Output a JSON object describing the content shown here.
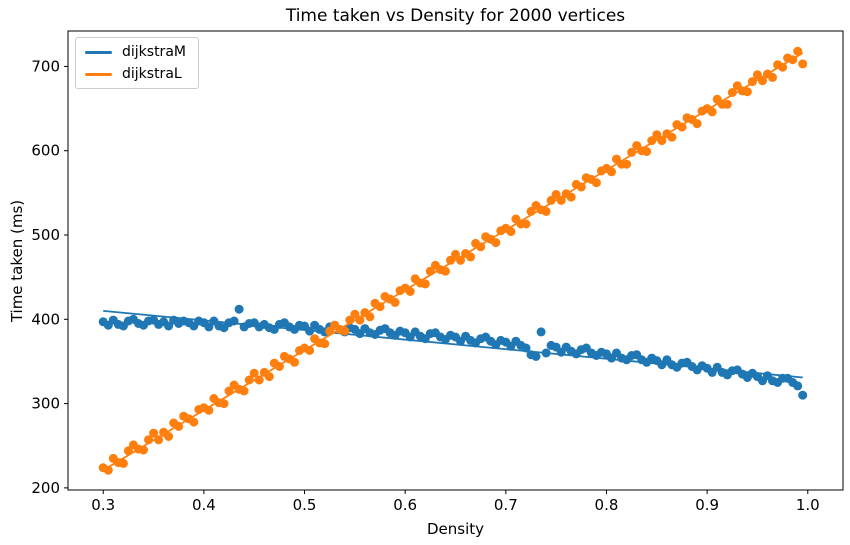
{
  "chart_data": {
    "type": "scatter",
    "title": "Time taken vs Density for 2000 vertices",
    "xlabel": "Density",
    "ylabel": "Time taken (ms)",
    "xlim": [
      0.265,
      1.035
    ],
    "ylim": [
      197.5,
      742
    ],
    "xticks": [
      0.3,
      0.4,
      0.5,
      0.6,
      0.7,
      0.8,
      0.9,
      1.0
    ],
    "yticks": [
      200,
      300,
      400,
      500,
      600,
      700
    ],
    "grid": false,
    "legend_position": "upper left",
    "x": [
      0.3,
      0.305,
      0.31,
      0.315,
      0.32,
      0.325,
      0.33,
      0.335,
      0.34,
      0.345,
      0.35,
      0.355,
      0.36,
      0.365,
      0.37,
      0.375,
      0.38,
      0.385,
      0.39,
      0.395,
      0.4,
      0.405,
      0.41,
      0.415,
      0.42,
      0.425,
      0.43,
      0.435,
      0.44,
      0.445,
      0.45,
      0.455,
      0.46,
      0.465,
      0.47,
      0.475,
      0.48,
      0.485,
      0.49,
      0.495,
      0.5,
      0.505,
      0.51,
      0.515,
      0.52,
      0.525,
      0.53,
      0.535,
      0.54,
      0.545,
      0.55,
      0.555,
      0.56,
      0.565,
      0.57,
      0.575,
      0.58,
      0.585,
      0.59,
      0.595,
      0.6,
      0.605,
      0.61,
      0.615,
      0.62,
      0.625,
      0.63,
      0.635,
      0.64,
      0.645,
      0.65,
      0.655,
      0.66,
      0.665,
      0.67,
      0.675,
      0.68,
      0.685,
      0.69,
      0.695,
      0.7,
      0.705,
      0.71,
      0.715,
      0.72,
      0.725,
      0.73,
      0.735,
      0.74,
      0.745,
      0.75,
      0.755,
      0.76,
      0.765,
      0.77,
      0.775,
      0.78,
      0.785,
      0.79,
      0.795,
      0.8,
      0.805,
      0.81,
      0.815,
      0.82,
      0.825,
      0.83,
      0.835,
      0.84,
      0.845,
      0.85,
      0.855,
      0.86,
      0.865,
      0.87,
      0.875,
      0.88,
      0.885,
      0.89,
      0.895,
      0.9,
      0.905,
      0.91,
      0.915,
      0.92,
      0.925,
      0.93,
      0.935,
      0.94,
      0.945,
      0.95,
      0.955,
      0.96,
      0.965,
      0.97,
      0.975,
      0.98,
      0.985,
      0.99,
      0.995
    ],
    "series": [
      {
        "name": "dijkstraM",
        "color": "#1f77b4",
        "marker": "circle",
        "trend_line": {
          "x": [
            0.3,
            0.995
          ],
          "y": [
            410,
            331
          ]
        },
        "y": [
          397,
          393,
          399,
          394,
          392,
          398,
          400,
          395,
          393,
          398,
          399,
          394,
          397,
          392,
          399,
          395,
          398,
          396,
          392,
          398,
          396,
          391,
          398,
          392,
          390,
          396,
          398,
          412,
          391,
          395,
          396,
          391,
          394,
          390,
          388,
          394,
          396,
          391,
          388,
          393,
          392,
          386,
          393,
          388,
          385,
          391,
          393,
          388,
          385,
          390,
          388,
          383,
          389,
          384,
          382,
          387,
          389,
          384,
          381,
          386,
          384,
          379,
          385,
          380,
          377,
          383,
          384,
          379,
          376,
          381,
          379,
          374,
          380,
          375,
          372,
          377,
          379,
          374,
          370,
          375,
          373,
          368,
          374,
          369,
          366,
          358,
          356,
          385,
          360,
          369,
          367,
          361,
          367,
          362,
          359,
          364,
          366,
          360,
          357,
          361,
          359,
          354,
          360,
          354,
          352,
          357,
          358,
          352,
          349,
          354,
          351,
          346,
          352,
          346,
          343,
          348,
          349,
          344,
          340,
          345,
          342,
          337,
          343,
          337,
          334,
          339,
          340,
          335,
          331,
          336,
          332,
          327,
          333,
          327,
          325,
          330,
          330,
          325,
          321,
          310
        ]
      },
      {
        "name": "dijkstraL",
        "color": "#ff7f0e",
        "marker": "circle",
        "trend_line": {
          "x": [
            0.3,
            0.995
          ],
          "y": [
            221,
            716
          ]
        },
        "y": [
          224,
          221,
          235,
          230,
          229,
          244,
          251,
          246,
          245,
          257,
          265,
          257,
          266,
          261,
          277,
          273,
          285,
          282,
          278,
          293,
          295,
          292,
          306,
          301,
          300,
          315,
          322,
          317,
          315,
          328,
          336,
          328,
          337,
          332,
          348,
          344,
          356,
          353,
          349,
          363,
          366,
          363,
          377,
          372,
          371,
          386,
          393,
          388,
          386,
          399,
          406,
          399,
          408,
          403,
          419,
          415,
          427,
          424,
          420,
          434,
          437,
          433,
          448,
          443,
          442,
          457,
          464,
          459,
          457,
          470,
          477,
          470,
          478,
          474,
          490,
          486,
          498,
          495,
          491,
          505,
          508,
          504,
          519,
          513,
          513,
          528,
          535,
          530,
          528,
          541,
          548,
          541,
          549,
          545,
          560,
          557,
          568,
          566,
          562,
          576,
          579,
          575,
          590,
          584,
          584,
          598,
          606,
          600,
          599,
          612,
          619,
          612,
          620,
          616,
          631,
          628,
          639,
          637,
          632,
          647,
          650,
          646,
          661,
          655,
          655,
          669,
          677,
          671,
          670,
          682,
          690,
          683,
          691,
          687,
          702,
          699,
          710,
          708,
          718,
          703
        ]
      }
    ]
  }
}
